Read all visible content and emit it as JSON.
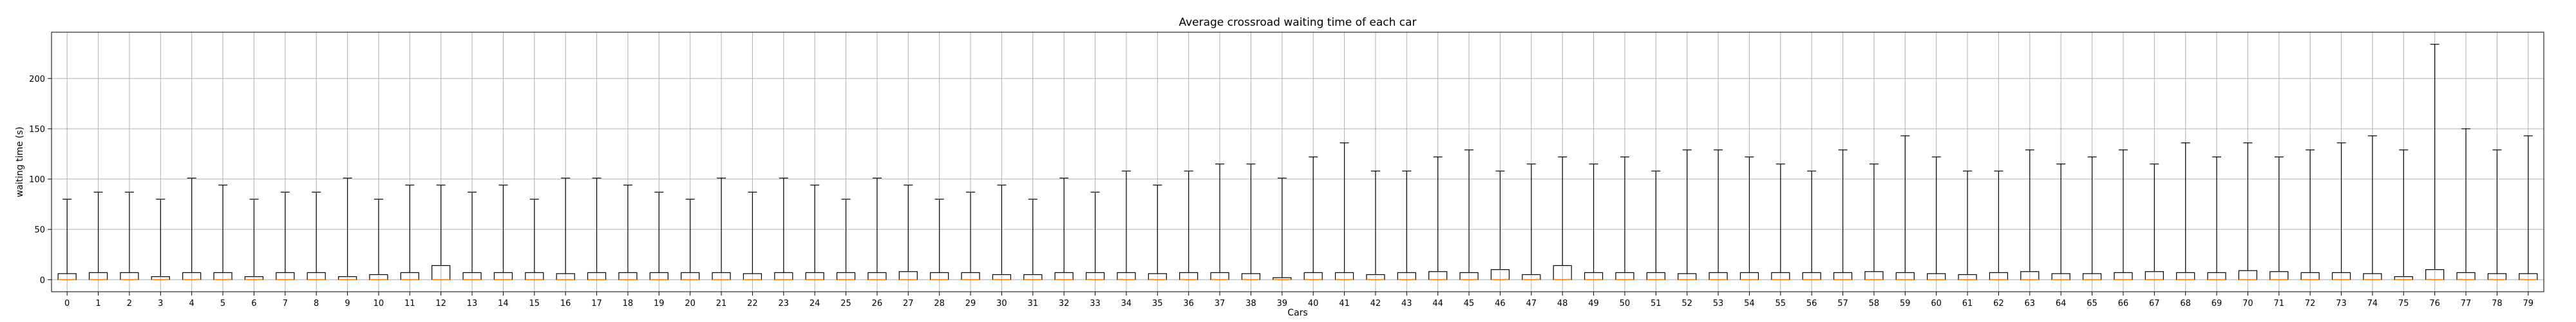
{
  "chart_data": {
    "type": "boxplot",
    "title": "Average crossroad waiting time of each car",
    "xlabel": "Cars",
    "ylabel": "waiting time (s)",
    "ylim": [
      -12,
      246
    ],
    "yticks": [
      0,
      50,
      100,
      150,
      200
    ],
    "grid": true,
    "colors": {
      "box": "#000000",
      "whisker": "#000000",
      "median": "#ff7f0e",
      "grid": "#b0b0b0",
      "frame": "#000000"
    },
    "categories": [
      "0",
      "1",
      "2",
      "3",
      "4",
      "5",
      "6",
      "7",
      "8",
      "9",
      "10",
      "11",
      "12",
      "13",
      "14",
      "15",
      "16",
      "17",
      "18",
      "19",
      "20",
      "21",
      "22",
      "23",
      "24",
      "25",
      "26",
      "27",
      "28",
      "29",
      "30",
      "31",
      "32",
      "33",
      "34",
      "35",
      "36",
      "37",
      "38",
      "39",
      "40",
      "41",
      "42",
      "43",
      "44",
      "45",
      "46",
      "47",
      "48",
      "49",
      "50",
      "51",
      "52",
      "53",
      "54",
      "55",
      "56",
      "57",
      "58",
      "59",
      "60",
      "61",
      "62",
      "63",
      "64",
      "65",
      "66",
      "67",
      "68",
      "69",
      "70",
      "71",
      "72",
      "73",
      "74",
      "75",
      "76",
      "77",
      "78",
      "79"
    ],
    "whisker_high": [
      80,
      87,
      87,
      80,
      101,
      94,
      80,
      87,
      87,
      101,
      80,
      94,
      94,
      87,
      94,
      80,
      101,
      101,
      94,
      87,
      80,
      101,
      87,
      101,
      94,
      80,
      101,
      94,
      80,
      87,
      94,
      80,
      101,
      87,
      108,
      94,
      108,
      115,
      115,
      101,
      122,
      136,
      108,
      108,
      122,
      129,
      108,
      115,
      122,
      115,
      122,
      108,
      129,
      129,
      122,
      115,
      108,
      129,
      115,
      143,
      122,
      108,
      108,
      129,
      115,
      122,
      129,
      115,
      136,
      122,
      136,
      122,
      129,
      136,
      143,
      129,
      234,
      150,
      129,
      143
    ],
    "q1": [
      0,
      0,
      0,
      0,
      0,
      0,
      0,
      0,
      0,
      0,
      0,
      0,
      0,
      0,
      0,
      0,
      0,
      0,
      0,
      0,
      0,
      0,
      0,
      0,
      0,
      0,
      0,
      0,
      0,
      0,
      0,
      0,
      0,
      0,
      0,
      0,
      0,
      0,
      0,
      0,
      0,
      0,
      0,
      0,
      0,
      0,
      0,
      0,
      0,
      0,
      0,
      0,
      0,
      0,
      0,
      0,
      0,
      0,
      0,
      0,
      0,
      0,
      0,
      0,
      0,
      0,
      0,
      0,
      0,
      0,
      0,
      0,
      0,
      0,
      0,
      0,
      0,
      0,
      0,
      0
    ],
    "median": [
      0,
      0,
      0,
      0,
      0,
      0,
      0,
      0,
      0,
      0,
      0,
      0,
      0,
      0,
      0,
      0,
      0,
      0,
      0,
      0,
      0,
      0,
      0,
      0,
      0,
      0,
      0,
      0,
      0,
      0,
      0,
      0,
      0,
      0,
      0,
      0,
      0,
      0,
      0,
      0,
      0,
      0,
      0,
      0,
      0,
      0,
      0,
      0,
      0,
      0,
      0,
      0,
      0,
      0,
      0,
      0,
      0,
      0,
      0,
      0,
      0,
      0,
      0,
      0,
      0,
      0,
      0,
      0,
      0,
      0,
      0,
      0,
      0,
      0,
      0,
      0,
      0,
      0,
      0,
      0
    ],
    "q3": [
      6,
      7,
      7,
      3,
      7,
      7,
      3,
      7,
      7,
      3,
      5,
      7,
      14,
      7,
      7,
      7,
      6,
      7,
      7,
      7,
      7,
      7,
      6,
      7,
      7,
      7,
      7,
      8,
      7,
      7,
      5,
      5,
      7,
      7,
      7,
      6,
      7,
      7,
      6,
      2,
      7,
      7,
      5,
      7,
      8,
      7,
      10,
      5,
      14,
      7,
      7,
      7,
      6,
      7,
      7,
      7,
      7,
      7,
      8,
      7,
      6,
      5,
      7,
      8,
      6,
      6,
      7,
      8,
      7,
      7,
      9,
      8,
      7,
      7,
      6,
      3,
      10,
      7,
      6,
      6
    ],
    "whisker_low": [
      0,
      0,
      0,
      0,
      0,
      0,
      0,
      0,
      0,
      0,
      0,
      0,
      0,
      0,
      0,
      0,
      0,
      0,
      0,
      0,
      0,
      0,
      0,
      0,
      0,
      0,
      0,
      0,
      0,
      0,
      0,
      0,
      0,
      0,
      0,
      0,
      0,
      0,
      0,
      0,
      0,
      0,
      0,
      0,
      0,
      0,
      0,
      0,
      0,
      0,
      0,
      0,
      0,
      0,
      0,
      0,
      0,
      0,
      0,
      0,
      0,
      0,
      0,
      0,
      0,
      0,
      0,
      0,
      0,
      0,
      0,
      0,
      0,
      0,
      0,
      0,
      0,
      0,
      0,
      0
    ]
  }
}
